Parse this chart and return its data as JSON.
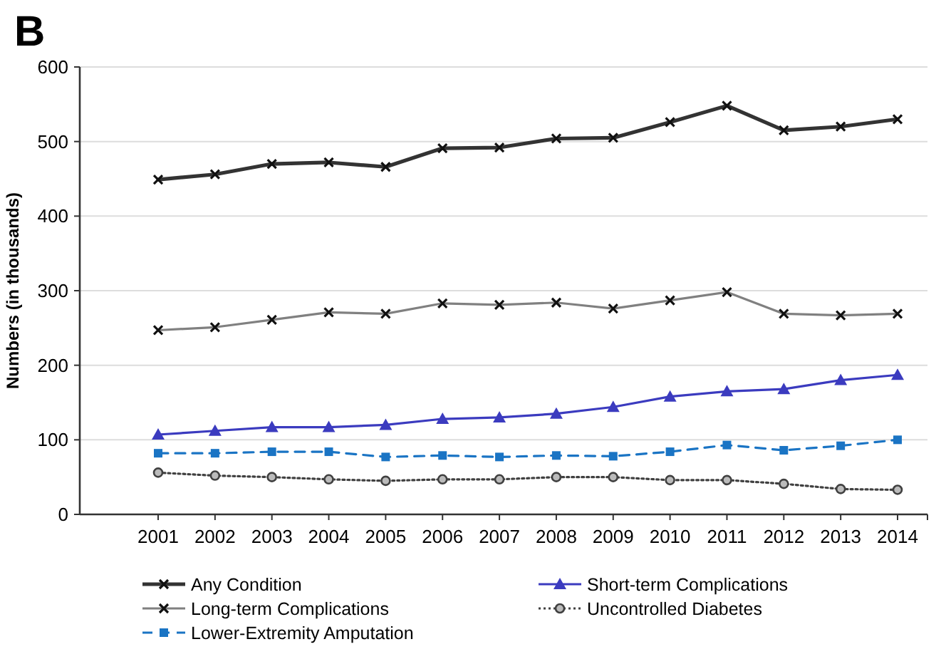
{
  "chart_data": {
    "type": "line",
    "ylabel": "Numbers (in thousands)",
    "annotations": [
      "B"
    ],
    "categories": [
      "2001",
      "2002",
      "2003",
      "2004",
      "2005",
      "2006",
      "2007",
      "2008",
      "2009",
      "2010",
      "2011",
      "2012",
      "2013",
      "2014"
    ],
    "ylim": [
      0,
      600
    ],
    "yticks": [
      0,
      100,
      200,
      300,
      400,
      500,
      600
    ],
    "grid": "y",
    "legend": "bottom",
    "series": [
      {
        "name": "Any Condition",
        "color": "#333333",
        "marker": "cross",
        "line_style": "solid",
        "values": [
          449,
          456,
          470,
          472,
          466,
          491,
          492,
          504,
          505,
          526,
          548,
          515,
          520,
          530
        ]
      },
      {
        "name": "Short-term Complications",
        "color": "#3b3bbf",
        "marker": "triangle",
        "line_style": "solid",
        "values": [
          107,
          112,
          117,
          117,
          120,
          128,
          130,
          135,
          144,
          158,
          165,
          168,
          180,
          187
        ]
      },
      {
        "name": "Long-term Complications",
        "color": "#808080",
        "marker": "cross",
        "line_style": "solid",
        "values": [
          247,
          251,
          261,
          271,
          269,
          283,
          281,
          284,
          276,
          287,
          298,
          269,
          267,
          269
        ]
      },
      {
        "name": "Uncontrolled Diabetes",
        "color": "#404040",
        "marker": "circle",
        "line_style": "dotted",
        "values": [
          56,
          52,
          50,
          47,
          45,
          47,
          47,
          50,
          50,
          46,
          46,
          41,
          34,
          33
        ]
      },
      {
        "name": "Lower-Extremity Amputation",
        "color": "#1a74c4",
        "marker": "square",
        "line_style": "dashed",
        "values": [
          82,
          82,
          84,
          84,
          77,
          79,
          77,
          79,
          78,
          84,
          93,
          86,
          92,
          100
        ]
      }
    ]
  }
}
